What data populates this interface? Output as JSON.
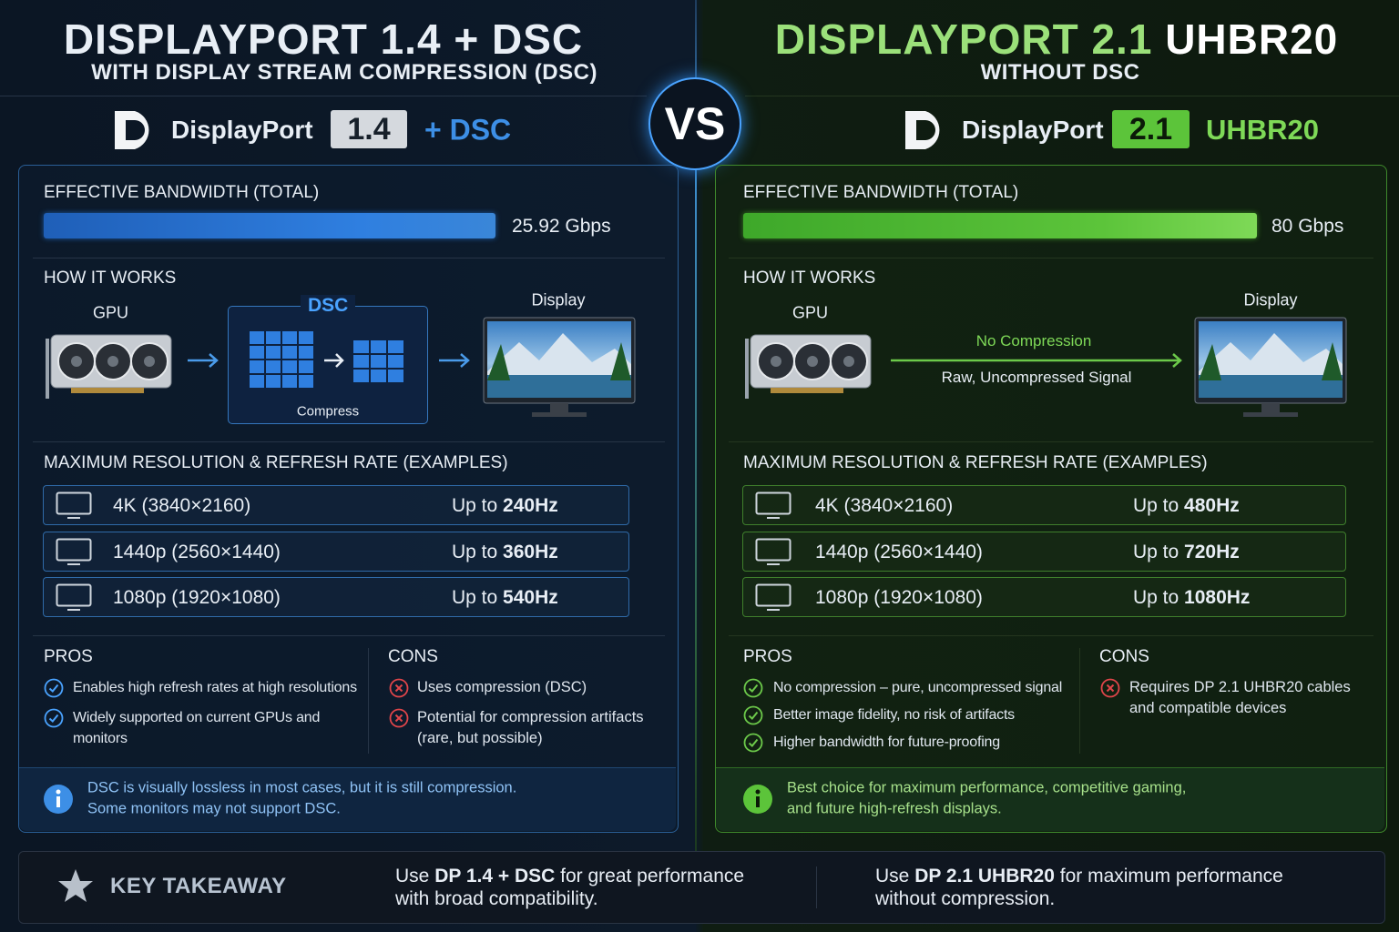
{
  "vs": "VS",
  "left": {
    "title": "DISPLAYPORT 1.4 + DSC",
    "subtitle": "WITH DISPLAY STREAM COMPRESSION (DSC)",
    "logo_text": "DisplayPort",
    "version": "1.4",
    "suffix": "+ DSC",
    "bandwidth": {
      "label": "EFFECTIVE BANDWIDTH (TOTAL)",
      "value": "25.92 Gbps"
    },
    "how": {
      "label": "HOW IT WORKS",
      "gpu": "GPU",
      "dsc": "DSC",
      "compress": "Compress",
      "display": "Display"
    },
    "resolution": {
      "label": "MAXIMUM RESOLUTION & REFRESH RATE (EXAMPLES)",
      "rows": [
        {
          "name": "4K (3840×2160)",
          "prefix": "Up to",
          "rate": "240Hz"
        },
        {
          "name": "1440p (2560×1440)",
          "prefix": "Up to",
          "rate": "360Hz"
        },
        {
          "name": "1080p (1920×1080)",
          "prefix": "Up to",
          "rate": "540Hz"
        }
      ]
    },
    "pros": {
      "label": "PROS",
      "items": [
        "Enables high refresh rates at high resolutions",
        "Widely supported on current GPUs and monitors"
      ]
    },
    "cons": {
      "label": "CONS",
      "items": [
        "Uses compression (DSC)",
        "Potential for compression artifacts (rare, but possible)"
      ]
    },
    "note": [
      "DSC is visually lossless in most cases, but it is still compression.",
      "Some monitors may not support DSC."
    ]
  },
  "right": {
    "title_accent": "DISPLAYPORT 2.1",
    "title_rest": "UHBR20",
    "subtitle": "WITHOUT DSC",
    "logo_text": "DisplayPort",
    "version": "2.1",
    "suffix": "UHBR20",
    "bandwidth": {
      "label": "EFFECTIVE BANDWIDTH (TOTAL)",
      "value": "80 Gbps"
    },
    "how": {
      "label": "HOW IT WORKS",
      "gpu": "GPU",
      "arrow_top": "No Compression",
      "arrow_bottom": "Raw, Uncompressed Signal",
      "display": "Display"
    },
    "resolution": {
      "label": "MAXIMUM RESOLUTION & REFRESH RATE (EXAMPLES)",
      "rows": [
        {
          "name": "4K (3840×2160)",
          "prefix": "Up to",
          "rate": "480Hz"
        },
        {
          "name": "1440p (2560×1440)",
          "prefix": "Up to",
          "rate": "720Hz"
        },
        {
          "name": "1080p (1920×1080)",
          "prefix": "Up to",
          "rate": "1080Hz"
        }
      ]
    },
    "pros": {
      "label": "PROS",
      "items": [
        "No compression – pure, uncompressed signal",
        "Better image fidelity, no risk of artifacts",
        "Higher bandwidth for future-proofing"
      ]
    },
    "cons": {
      "label": "CONS",
      "items": [
        "Requires DP 2.1 UHBR20 cables and compatible devices"
      ]
    },
    "note": [
      "Best choice for maximum performance, competitive gaming,",
      "and future high-refresh displays."
    ]
  },
  "takeaway": {
    "label": "KEY TAKEAWAY",
    "left": [
      [
        {
          "text": "Use"
        },
        {
          "text": "DP 1.4 + DSC",
          "bold": true
        },
        {
          "text": "for great performance"
        }
      ],
      [
        {
          "text": "with broad compatibility."
        }
      ]
    ],
    "right": [
      [
        {
          "text": "Use"
        },
        {
          "text": "DP 2.1 UHBR20",
          "bold": true
        },
        {
          "text": "for maximum performance"
        }
      ],
      [
        {
          "text": "without compression."
        }
      ]
    ]
  }
}
